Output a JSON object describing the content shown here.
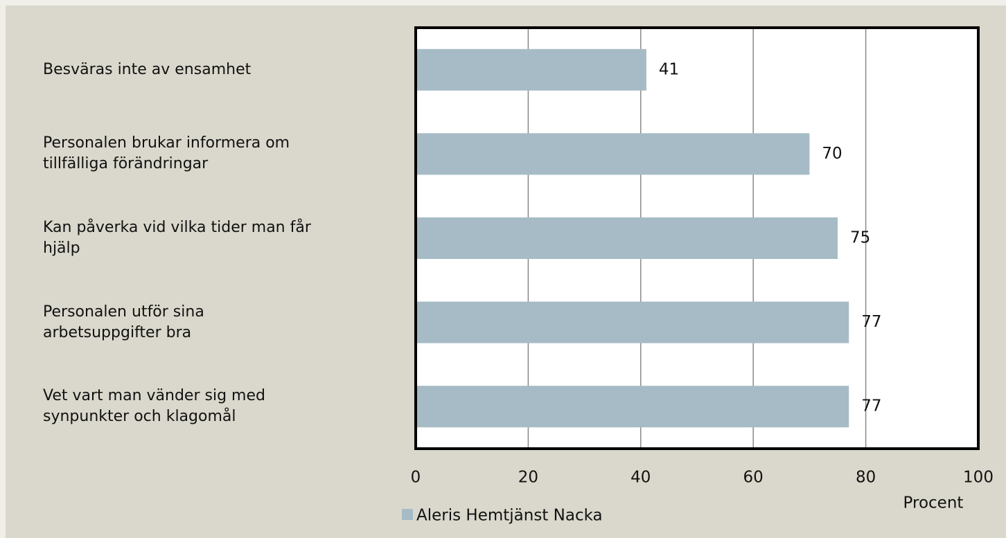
{
  "chart_data": {
    "type": "barh",
    "categories": [
      "Besväras inte av ensamhet",
      "Personalen brukar informera om\ntillfälliga förändringar",
      "Kan påverka vid vilka tider man får\nhjälp",
      "Personalen utför sina\narbetsuppgifter bra",
      "Vet vart man vänder sig med\nsynpunkter och klagomål"
    ],
    "series": [
      {
        "name": "Aleris Hemtjänst Nacka",
        "color": "#a6bbc6",
        "values": [
          41,
          70,
          75,
          77,
          77
        ]
      }
    ],
    "xlabel": "Procent",
    "xlim": [
      0,
      100
    ],
    "xticks": [
      0,
      20,
      40,
      60,
      80,
      100
    ],
    "grid": true,
    "legend": "bottom"
  }
}
